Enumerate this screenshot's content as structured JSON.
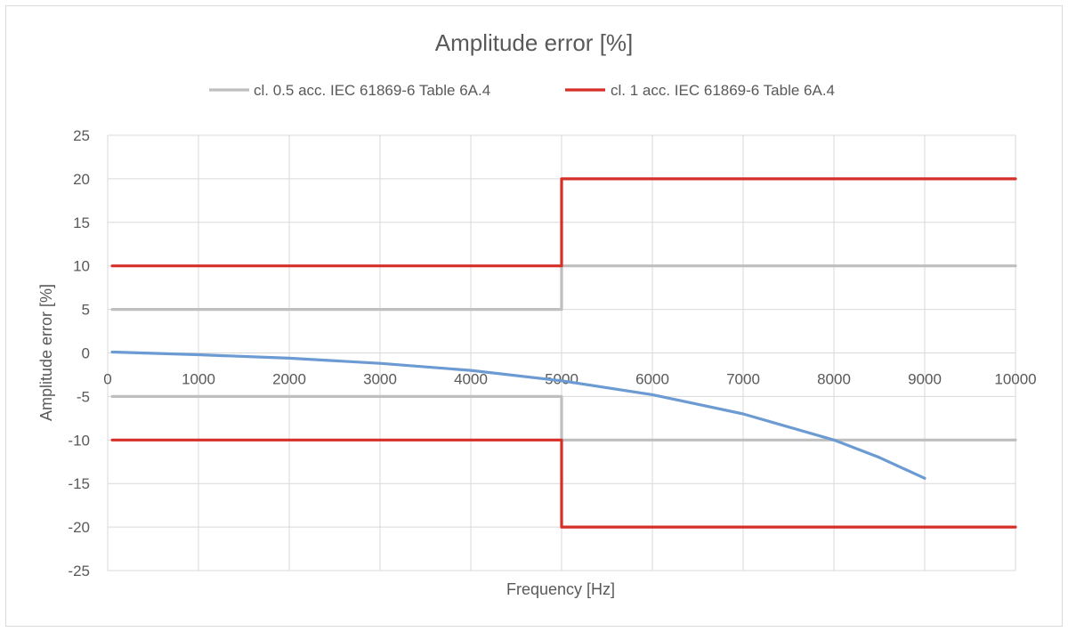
{
  "chart_data": {
    "type": "line",
    "title": "Amplitude error [%]",
    "xlabel": "Frequency [Hz]",
    "ylabel": "Amplitude error [%]",
    "xlim": [
      0,
      10000
    ],
    "ylim": [
      -25,
      25
    ],
    "x_ticks": [
      0,
      1000,
      2000,
      3000,
      4000,
      5000,
      6000,
      7000,
      8000,
      9000,
      10000
    ],
    "y_ticks": [
      25,
      20,
      15,
      10,
      5,
      0,
      -5,
      -10,
      -15,
      -20,
      -25
    ],
    "grid": true,
    "legend_position": "top",
    "series": [
      {
        "name": "cl. 0.5 acc. IEC 61869-6 Table 6A.4",
        "color": "#bfbfbf",
        "in_legend": true,
        "x": [
          50,
          5000,
          5000,
          10000
        ],
        "y": [
          5,
          5,
          10,
          10
        ]
      },
      {
        "color": "#bfbfbf",
        "in_legend": false,
        "x": [
          50,
          5000,
          5000,
          10000
        ],
        "y": [
          -5,
          -5,
          -10,
          -10
        ]
      },
      {
        "name": "cl. 1 acc. IEC 61869-6 Table 6A.4",
        "color": "#d62f27",
        "in_legend": true,
        "x": [
          50,
          5000,
          5000,
          10000
        ],
        "y": [
          10,
          10,
          20,
          20
        ]
      },
      {
        "color": "#d62f27",
        "in_legend": false,
        "x": [
          50,
          5000,
          5000,
          10000
        ],
        "y": [
          -10,
          -10,
          -20,
          -20
        ]
      },
      {
        "color": "#6b9bd2",
        "in_legend": false,
        "x": [
          50,
          1000,
          2000,
          3000,
          4000,
          5000,
          6000,
          7000,
          8000,
          8500,
          9000
        ],
        "y": [
          0.1,
          -0.2,
          -0.6,
          -1.2,
          -2.0,
          -3.2,
          -4.8,
          -7.0,
          -10.0,
          -12.0,
          -14.4
        ]
      }
    ]
  }
}
